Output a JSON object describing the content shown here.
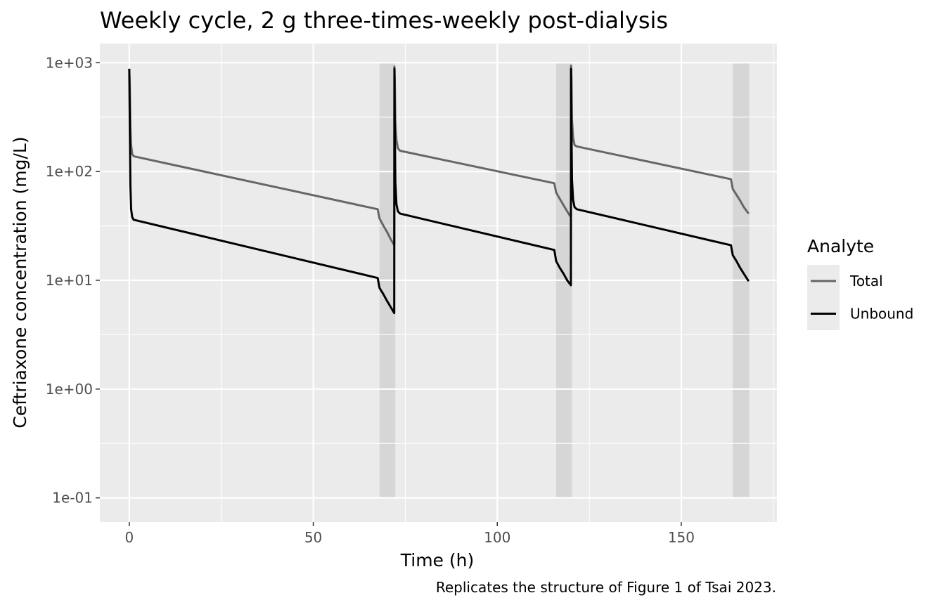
{
  "chart_data": {
    "type": "line",
    "title": "Weekly cycle, 2 g three-times-weekly post-dialysis",
    "xlabel": "Time (h)",
    "ylabel": "Ceftriaxone concentration (mg/L)",
    "caption": "Replicates the structure of Figure 1 of Tsai 2023.",
    "y_scale": "log10",
    "xlim": [
      -8,
      176
    ],
    "ylim": [
      0.06,
      1500
    ],
    "x_ticks": [
      0,
      50,
      100,
      150
    ],
    "x_tick_labels": [
      "0",
      "50",
      "100",
      "150"
    ],
    "y_ticks": [
      0.1,
      1,
      10,
      100,
      1000
    ],
    "y_tick_labels": [
      "1e-01",
      "1e+00",
      "1e+01",
      "1e+02",
      "1e+03"
    ],
    "grid": true,
    "legend_position": "right",
    "legend_title": "Analyte",
    "dialysis_windows": [
      [
        68,
        72.3
      ],
      [
        116,
        120.3
      ],
      [
        164,
        168.5
      ]
    ],
    "series": [
      {
        "name": "Total",
        "color": "#666666",
        "x": [
          0,
          0.15,
          0.3,
          0.5,
          0.8,
          1.2,
          67.5,
          68,
          69,
          70,
          71,
          72,
          72.05,
          72.15,
          72.3,
          72.6,
          73,
          73.6,
          115.5,
          116,
          117,
          118,
          119,
          120,
          120.05,
          120.15,
          120.3,
          120.6,
          121,
          121.6,
          163.5,
          164,
          165,
          166,
          167,
          168.3
        ],
        "y": [
          880,
          600,
          260,
          175,
          145,
          138,
          45,
          37,
          32,
          28,
          24,
          21,
          920,
          700,
          290,
          195,
          163,
          155,
          78,
          64,
          56,
          49,
          43,
          38,
          940,
          720,
          300,
          205,
          175,
          170,
          85,
          69,
          61,
          54,
          47,
          41
        ]
      },
      {
        "name": "Unbound",
        "color": "#000000",
        "x": [
          0,
          0.15,
          0.3,
          0.5,
          0.8,
          1.2,
          67.5,
          68,
          69,
          70,
          71,
          72,
          72.05,
          72.15,
          72.3,
          72.6,
          73,
          73.6,
          115.5,
          116,
          117,
          118,
          119,
          120,
          120.05,
          120.15,
          120.3,
          120.6,
          121,
          121.6,
          163.5,
          164,
          165,
          166,
          167,
          168.3
        ],
        "y": [
          880,
          250,
          75,
          45,
          38,
          36,
          10.5,
          8.5,
          7.5,
          6.5,
          5.7,
          5.0,
          880,
          250,
          80,
          50,
          43,
          41,
          19,
          15,
          13,
          11.5,
          10,
          9.0,
          880,
          260,
          85,
          55,
          47,
          45,
          21,
          17,
          15,
          13,
          11.5,
          9.8
        ]
      }
    ]
  }
}
